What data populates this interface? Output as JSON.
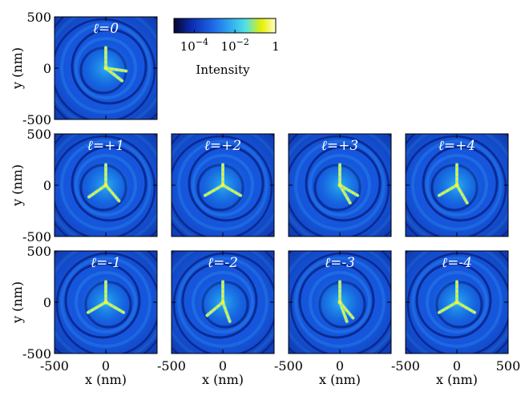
{
  "chart_data": {
    "type": "heatmap",
    "colorbar": {
      "label": "Intensity",
      "scale": "log",
      "range": [
        1e-05,
        1
      ],
      "ticks": [
        {
          "value": 0.0001,
          "base": "10",
          "exp": "−4"
        },
        {
          "value": 0.01,
          "base": "10",
          "exp": "−2"
        },
        {
          "value": 1,
          "label": "1"
        }
      ],
      "colormap": [
        "#05052e",
        "#0b2fb4",
        "#1e66e6",
        "#2fa8f0",
        "#4fe0e8",
        "#e6f000",
        "#fffec8"
      ]
    },
    "xlabel": "x (nm)",
    "ylabel": "y (nm)",
    "xlim": [
      -500,
      500
    ],
    "ylim": [
      -500,
      500
    ],
    "x_tick_labels": [
      "-500",
      "0",
      "500"
    ],
    "y_tick_labels": [
      "500",
      "0",
      "-500"
    ],
    "panels": [
      {
        "label": "ℓ=0",
        "l": 0,
        "row": 0,
        "col": 0,
        "arms": [
          90,
          -38,
          -8
        ]
      },
      {
        "label": "ℓ=+1",
        "l": 1,
        "row": 1,
        "col": 0,
        "arms": [
          90,
          -145,
          -50
        ]
      },
      {
        "label": "ℓ=+2",
        "l": 2,
        "row": 1,
        "col": 1,
        "arms": [
          90,
          -150,
          -30
        ]
      },
      {
        "label": "ℓ=+3",
        "l": 3,
        "row": 1,
        "col": 2,
        "arms": [
          90,
          -60,
          -30
        ]
      },
      {
        "label": "ℓ=+4",
        "l": 4,
        "row": 1,
        "col": 3,
        "arms": [
          90,
          -150,
          -60
        ]
      },
      {
        "label": "ℓ=-1",
        "l": -1,
        "row": 2,
        "col": 0,
        "arms": [
          90,
          -150,
          -30
        ]
      },
      {
        "label": "ℓ=-2",
        "l": -2,
        "row": 2,
        "col": 1,
        "arms": [
          90,
          -140,
          -70
        ]
      },
      {
        "label": "ℓ=-3",
        "l": -3,
        "row": 2,
        "col": 2,
        "arms": [
          90,
          -70,
          -50
        ]
      },
      {
        "label": "ℓ=-4",
        "l": -4,
        "row": 2,
        "col": 3,
        "arms": [
          90,
          -150,
          -30
        ]
      }
    ]
  }
}
